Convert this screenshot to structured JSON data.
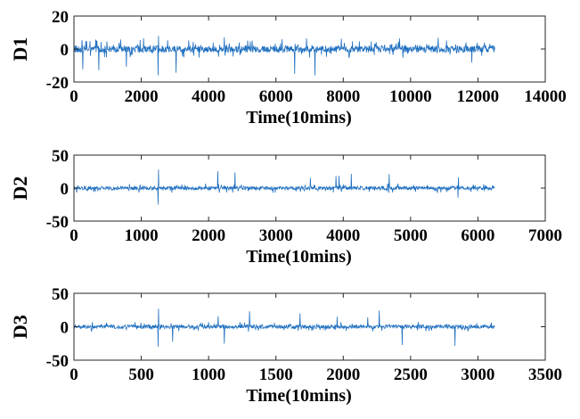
{
  "chart_data": [
    {
      "type": "line",
      "ylabel": "D1",
      "xlabel": "Time(10mins)",
      "xlim": [
        0,
        14000
      ],
      "ylim": [
        -20,
        20
      ],
      "xticks": [
        0,
        2000,
        4000,
        6000,
        8000,
        10000,
        12000,
        14000
      ],
      "yticks": [
        -20,
        0,
        20
      ],
      "series": [
        {
          "length": 12500,
          "color": "#1f6fbf",
          "approx_amplitude": 3,
          "max_spike": 8,
          "min_spike": -16
        }
      ]
    },
    {
      "type": "line",
      "ylabel": "D2",
      "xlabel": "Time(10mins)",
      "xlim": [
        0,
        7000
      ],
      "ylim": [
        -50,
        50
      ],
      "xticks": [
        0,
        1000,
        2000,
        3000,
        4000,
        5000,
        6000,
        7000
      ],
      "yticks": [
        -50,
        0,
        50
      ],
      "series": [
        {
          "length": 6250,
          "color": "#1f6fbf",
          "approx_amplitude": 4,
          "max_spike": 28,
          "min_spike": -25
        }
      ]
    },
    {
      "type": "line",
      "ylabel": "D3",
      "xlabel": "Time(10mins)",
      "xlim": [
        0,
        3500
      ],
      "ylim": [
        -50,
        50
      ],
      "xticks": [
        0,
        500,
        1000,
        1500,
        2000,
        2500,
        3000,
        3500
      ],
      "yticks": [
        -50,
        0,
        50
      ],
      "series": [
        {
          "length": 3125,
          "color": "#1f6fbf",
          "approx_amplitude": 4,
          "max_spike": 27,
          "min_spike": -30
        }
      ]
    }
  ]
}
